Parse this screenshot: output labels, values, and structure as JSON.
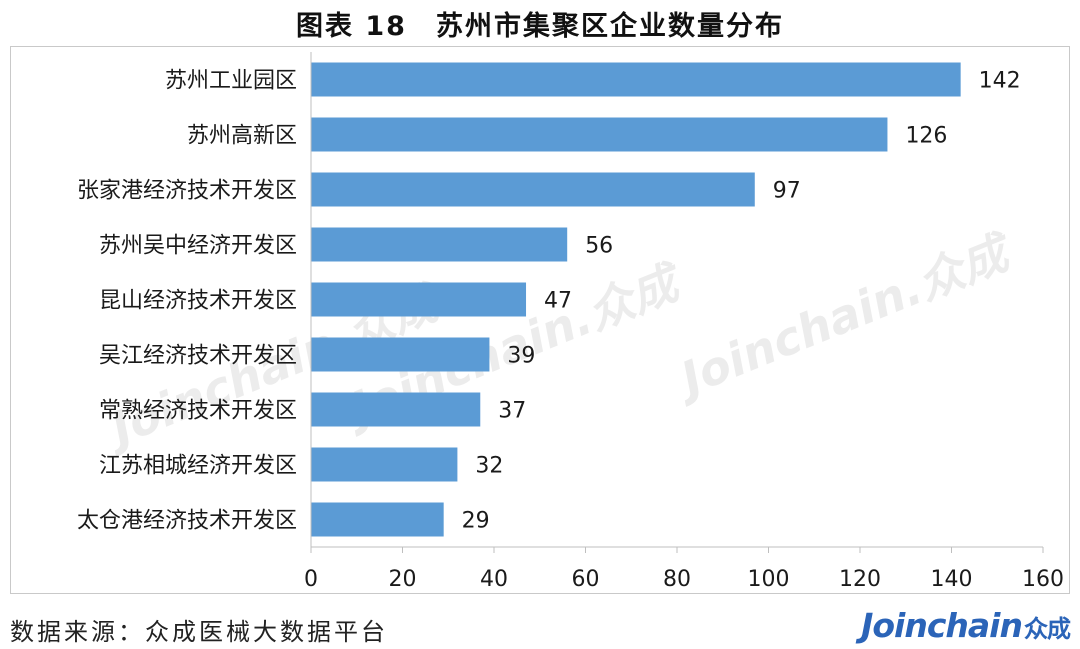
{
  "title": "图表 18　苏州市集聚区企业数量分布",
  "source": "数据来源：众成医械大数据平台",
  "brand": {
    "latin": "Joinchain",
    "cn": "众成"
  },
  "watermark": "Joinchain.众成",
  "colors": {
    "bar": "#5b9bd5",
    "axis": "#bfbfbf",
    "text": "#1a1a1a"
  },
  "chart_data": {
    "type": "bar",
    "orientation": "horizontal",
    "categories": [
      "苏州工业园区",
      "苏州高新区",
      "张家港经济技术开发区",
      "苏州吴中经济开发区",
      "昆山经济技术开发区",
      "吴江经济技术开发区",
      "常熟经济技术开发区",
      "江苏相城经济开发区",
      "太仓港经济技术开发区"
    ],
    "values": [
      142,
      126,
      97,
      56,
      47,
      39,
      37,
      32,
      29
    ],
    "xlim": [
      0,
      160
    ],
    "xticks": [
      0,
      20,
      40,
      60,
      80,
      100,
      120,
      140,
      160
    ],
    "data_labels": true,
    "grid": false,
    "legend": "none"
  }
}
